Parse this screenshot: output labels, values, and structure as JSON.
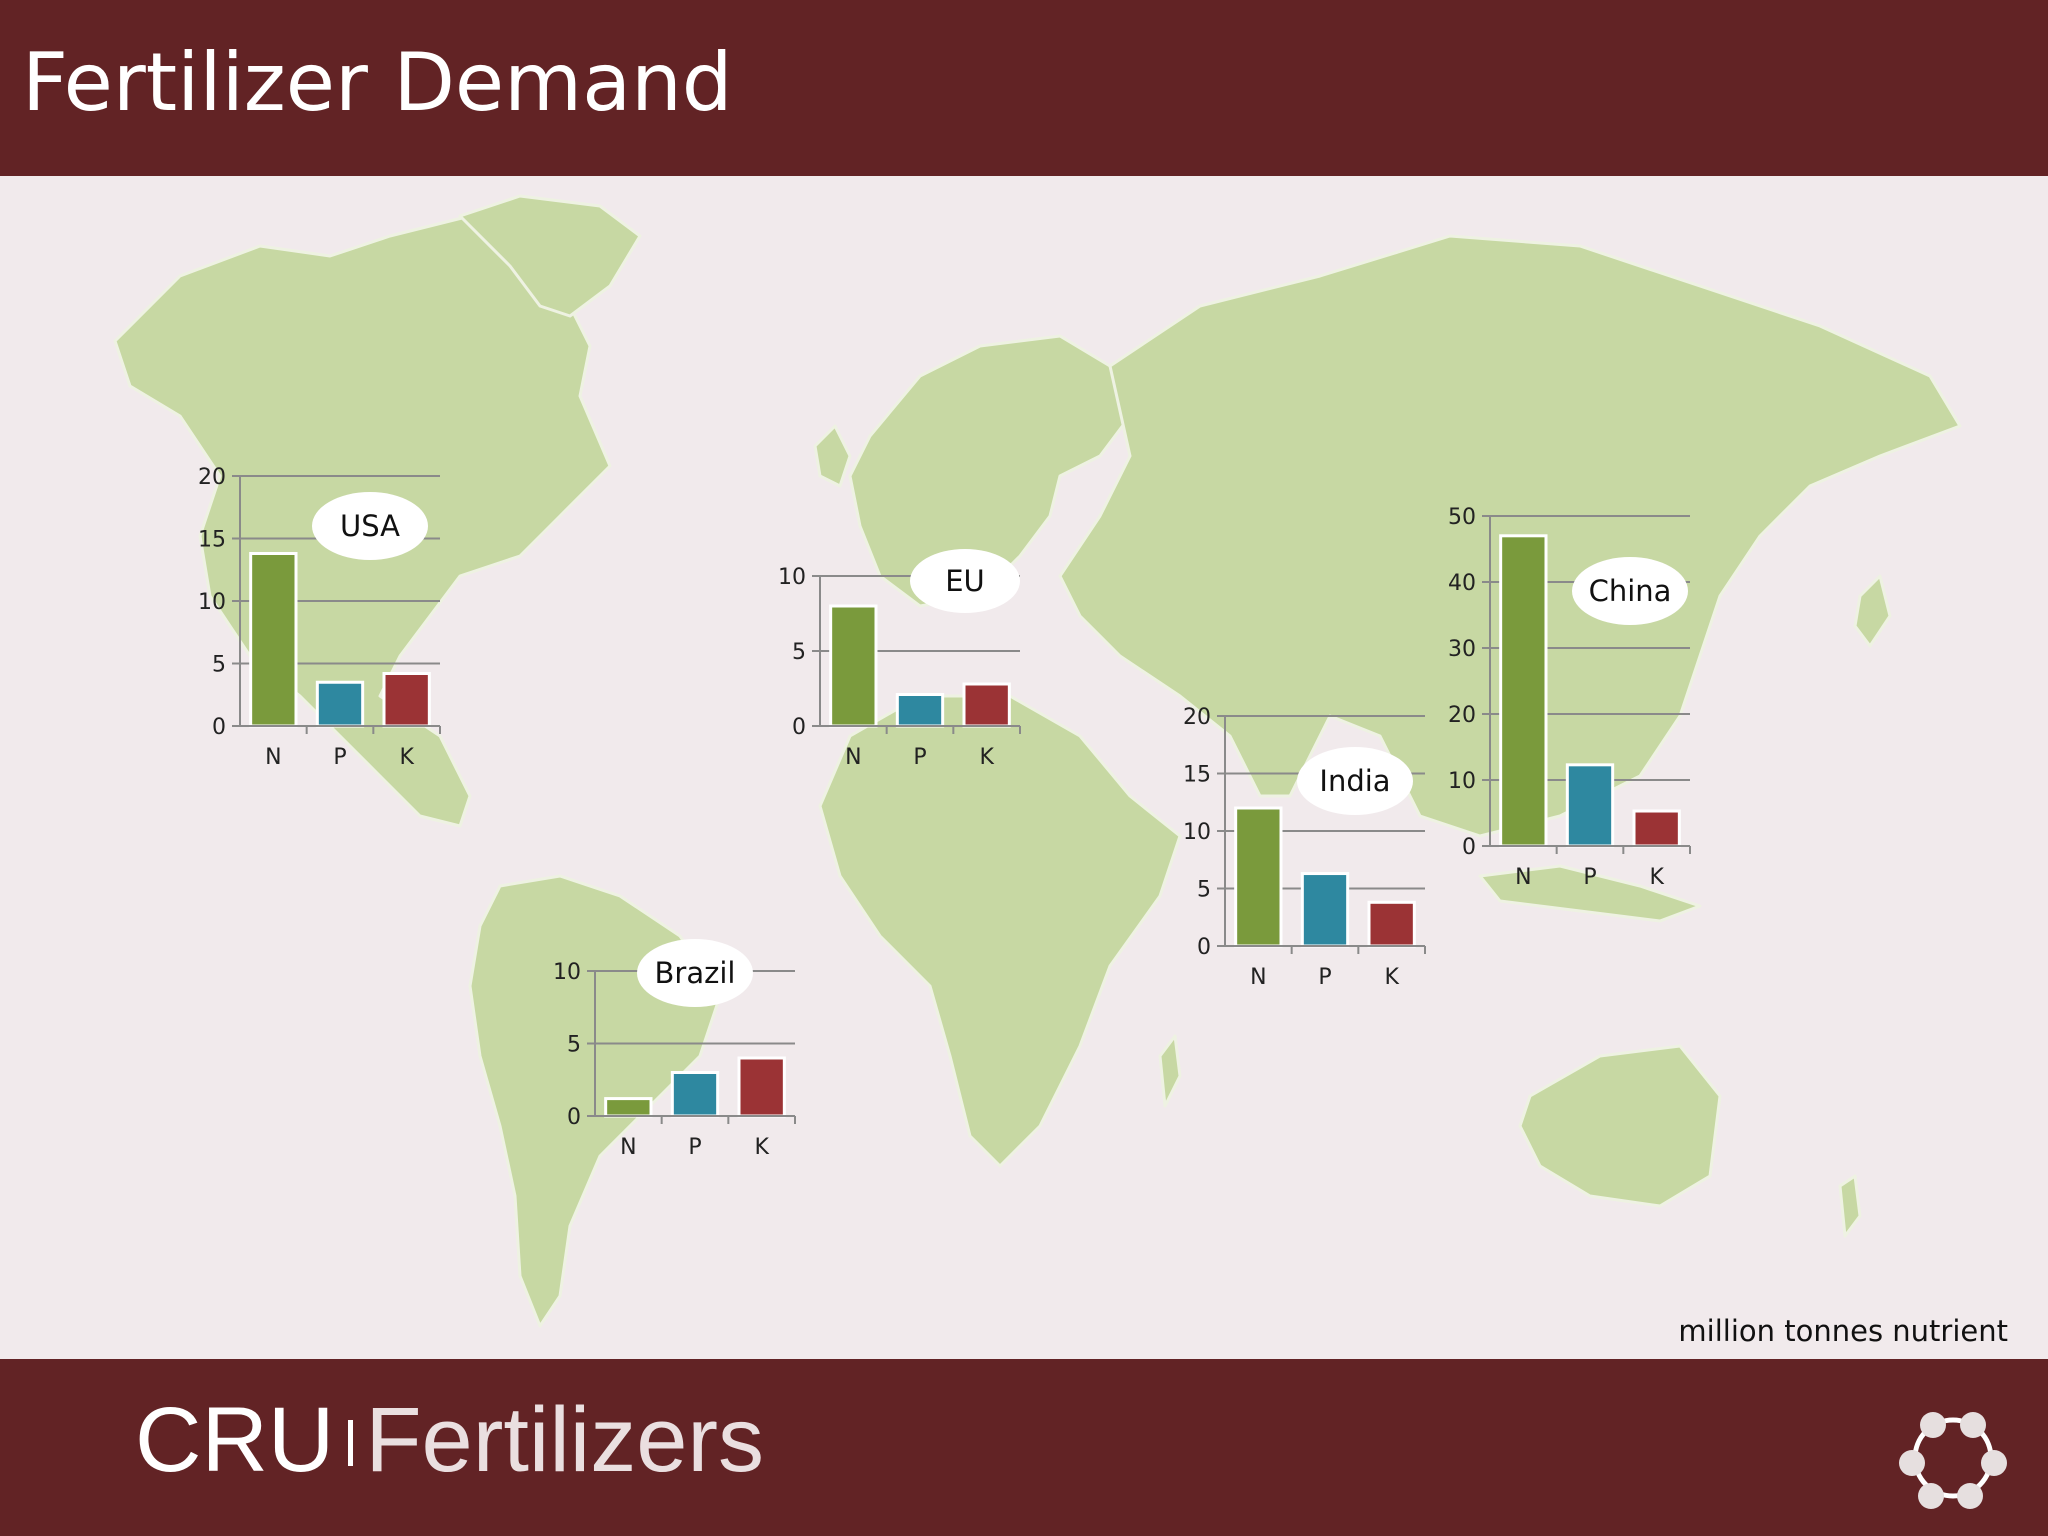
{
  "header": {
    "title": "Fertilizer Demand"
  },
  "units_note": "million tonnes nutrient",
  "footer": {
    "brand_main": "CRU",
    "brand_sub": "Fertilizers"
  },
  "colors": {
    "N": "#7a9a3c",
    "P": "#2e88a0",
    "K": "#9b3335",
    "land": "#c7d8a3",
    "sea": "#f1eaec",
    "banner": "#622325"
  },
  "icons": {
    "logo": "circle-ring-logo-icon"
  },
  "chart_data": [
    {
      "type": "bar",
      "title": "USA",
      "categories": [
        "N",
        "P",
        "K"
      ],
      "values": [
        13.8,
        3.5,
        4.2
      ],
      "ylim": [
        0,
        20
      ],
      "yticks": [
        0,
        5,
        10,
        15,
        20
      ]
    },
    {
      "type": "bar",
      "title": "EU",
      "categories": [
        "N",
        "P",
        "K"
      ],
      "values": [
        8.0,
        2.1,
        2.8
      ],
      "ylim": [
        0,
        10
      ],
      "yticks": [
        0,
        5,
        10
      ]
    },
    {
      "type": "bar",
      "title": "China",
      "categories": [
        "N",
        "P",
        "K"
      ],
      "values": [
        47,
        12.3,
        5.3
      ],
      "ylim": [
        0,
        50
      ],
      "yticks": [
        0,
        10,
        20,
        30,
        40,
        50
      ]
    },
    {
      "type": "bar",
      "title": "India",
      "categories": [
        "N",
        "P",
        "K"
      ],
      "values": [
        12.0,
        6.3,
        3.8
      ],
      "ylim": [
        0,
        20
      ],
      "yticks": [
        0,
        5,
        10,
        15,
        20
      ]
    },
    {
      "type": "bar",
      "title": "Brazil",
      "categories": [
        "N",
        "P",
        "K"
      ],
      "values": [
        1.2,
        3.0,
        4.0
      ],
      "ylim": [
        0,
        10
      ],
      "yticks": [
        0,
        5,
        10
      ]
    }
  ]
}
